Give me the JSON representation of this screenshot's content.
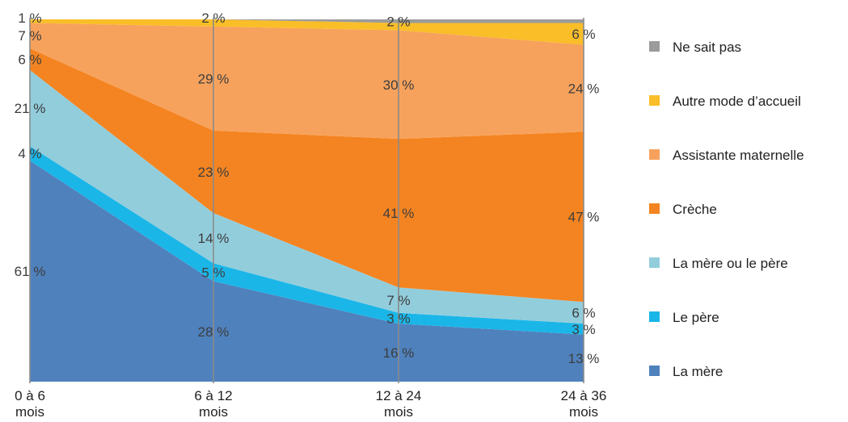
{
  "chart_data": {
    "type": "area",
    "stacked": true,
    "normalized_to_percent": true,
    "x": [
      "0 à 6 mois",
      "6 à 12 mois",
      "12 à 24 mois",
      "24 à 36 mois"
    ],
    "x_tick_lines": [
      [
        "0 à 6",
        "mois"
      ],
      [
        "6 à 12",
        "mois"
      ],
      [
        "12 à 24",
        "mois"
      ],
      [
        "24 à 36",
        "mois"
      ]
    ],
    "series": [
      {
        "name": "La mère",
        "color": "#4f81bd",
        "values": [
          61,
          28,
          16,
          13
        ],
        "labels": [
          "61 %",
          "28 %",
          "16 %",
          "13 %"
        ]
      },
      {
        "name": "Le père",
        "color": "#1bb6e8",
        "values": [
          4,
          5,
          3,
          3
        ],
        "labels": [
          "4 %",
          "5 %",
          "3 %",
          "3 %"
        ]
      },
      {
        "name": "La mère ou le père",
        "color": "#92cddc",
        "values": [
          21,
          14,
          7,
          6
        ],
        "labels": [
          "21 %",
          "14 %",
          "7 %",
          "6 %"
        ]
      },
      {
        "name": "Crèche",
        "color": "#f48421",
        "values": [
          6,
          23,
          41,
          47
        ],
        "labels": [
          "6 %",
          "23 %",
          "41 %",
          "47 %"
        ]
      },
      {
        "name": "Assistante maternelle",
        "color": "#f7a25c",
        "values": [
          7,
          29,
          30,
          24
        ],
        "labels": [
          "7 %",
          "29 %",
          "30 %",
          "24 %"
        ]
      },
      {
        "name": "Autre mode d’accueil",
        "color": "#f9be28",
        "values": [
          1,
          2,
          2,
          6
        ],
        "labels": [
          "1 %",
          "2 %",
          "2 %",
          "6 %"
        ]
      },
      {
        "name": "Ne sait pas",
        "color": "#9b9b9b",
        "values": [
          0,
          0,
          1,
          1
        ],
        "labels": []
      }
    ],
    "legend_order": [
      "Ne sait pas",
      "Autre mode d’accueil",
      "Assistante maternelle",
      "Crèche",
      "La mère ou le père",
      "Le père",
      "La mère"
    ],
    "legend_position": "right",
    "grid": false,
    "vertical_lines_at_categories": true
  }
}
